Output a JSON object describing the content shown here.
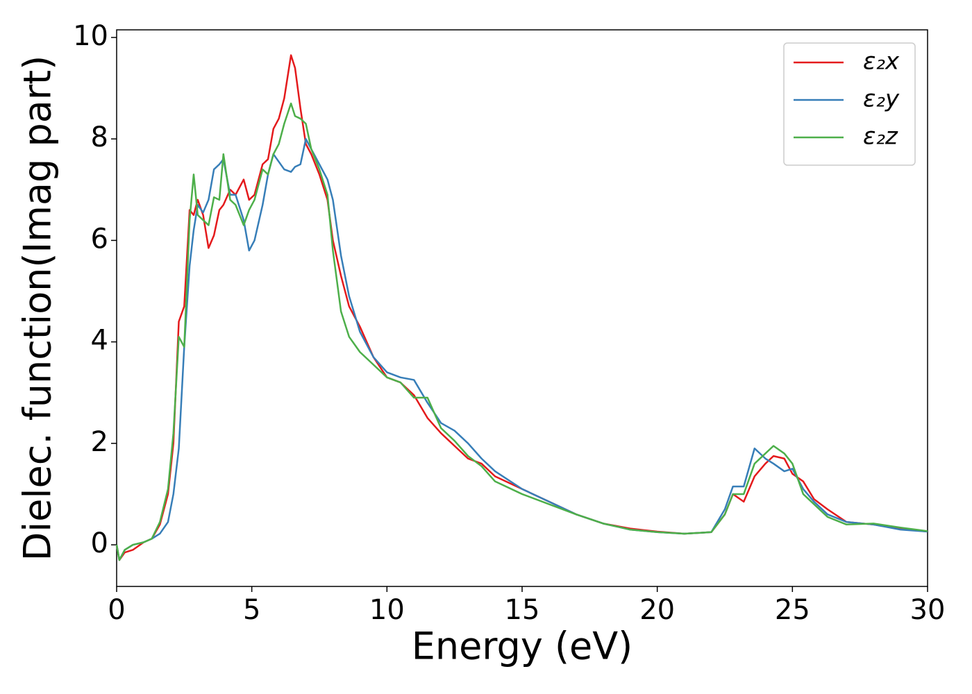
{
  "chart_data": {
    "type": "line",
    "xlabel": "Energy (eV)",
    "ylabel": "Dielec. function(Imag part)",
    "x": [
      0,
      0.1,
      0.3,
      0.6,
      1,
      1.3,
      1.6,
      1.9,
      2.1,
      2.3,
      2.5,
      2.7,
      2.85,
      3.0,
      3.2,
      3.4,
      3.6,
      3.8,
      3.95,
      4.2,
      4.4,
      4.7,
      4.9,
      5.1,
      5.4,
      5.6,
      5.8,
      6.0,
      6.2,
      6.45,
      6.6,
      6.8,
      7.0,
      7.2,
      7.5,
      7.8,
      8.0,
      8.3,
      8.6,
      9.0,
      9.5,
      10,
      10.5,
      11,
      11.5,
      12,
      12.5,
      13,
      13.5,
      14,
      15,
      16,
      17,
      18,
      19,
      20,
      21,
      22,
      22.5,
      22.8,
      23.2,
      23.6,
      24,
      24.3,
      24.7,
      25,
      25.4,
      25.8,
      26.3,
      27,
      28,
      29,
      30
    ],
    "series": [
      {
        "name": "ε₂x",
        "color": "#e41a1c",
        "values": [
          0,
          -0.3,
          -0.15,
          -0.1,
          0.05,
          0.12,
          0.4,
          1.0,
          2.0,
          4.4,
          4.7,
          6.6,
          6.5,
          6.8,
          6.5,
          5.85,
          6.1,
          6.6,
          6.7,
          7.0,
          6.9,
          7.2,
          6.8,
          6.9,
          7.5,
          7.6,
          8.2,
          8.4,
          8.8,
          9.65,
          9.4,
          8.6,
          7.9,
          7.7,
          7.3,
          6.8,
          6.0,
          5.3,
          4.7,
          4.3,
          3.7,
          3.3,
          3.2,
          2.95,
          2.5,
          2.2,
          1.95,
          1.7,
          1.6,
          1.35,
          1.1,
          0.85,
          0.6,
          0.42,
          0.32,
          0.26,
          0.22,
          0.25,
          0.6,
          1.0,
          0.85,
          1.35,
          1.6,
          1.75,
          1.7,
          1.4,
          1.25,
          0.9,
          0.7,
          0.45,
          0.4,
          0.32,
          0.26
        ]
      },
      {
        "name": "ε₂y",
        "color": "#377eb8",
        "values": [
          0,
          -0.3,
          -0.1,
          0,
          0.05,
          0.12,
          0.22,
          0.45,
          1.0,
          1.9,
          3.9,
          5.5,
          6.2,
          6.7,
          6.55,
          6.8,
          7.4,
          7.5,
          7.6,
          6.9,
          6.9,
          6.4,
          5.8,
          6.0,
          6.7,
          7.3,
          7.7,
          7.55,
          7.4,
          7.35,
          7.45,
          7.5,
          8.0,
          7.8,
          7.5,
          7.2,
          6.8,
          5.7,
          4.9,
          4.2,
          3.7,
          3.4,
          3.3,
          3.25,
          2.8,
          2.4,
          2.25,
          2.0,
          1.7,
          1.45,
          1.1,
          0.85,
          0.6,
          0.42,
          0.3,
          0.25,
          0.22,
          0.25,
          0.7,
          1.15,
          1.15,
          1.9,
          1.7,
          1.6,
          1.45,
          1.5,
          1.1,
          0.85,
          0.6,
          0.45,
          0.4,
          0.3,
          0.26
        ]
      },
      {
        "name": "ε₂z",
        "color": "#4daf4a",
        "values": [
          0,
          -0.3,
          -0.1,
          0,
          0.05,
          0.12,
          0.45,
          1.1,
          2.2,
          4.1,
          3.9,
          6.4,
          7.3,
          6.5,
          6.4,
          6.3,
          6.85,
          6.8,
          7.7,
          6.8,
          6.7,
          6.3,
          6.6,
          6.8,
          7.4,
          7.3,
          7.7,
          7.9,
          8.3,
          8.7,
          8.45,
          8.4,
          8.3,
          7.8,
          7.4,
          6.9,
          5.8,
          4.6,
          4.1,
          3.8,
          3.55,
          3.3,
          3.2,
          2.9,
          2.9,
          2.3,
          2.05,
          1.75,
          1.55,
          1.25,
          1.0,
          0.8,
          0.6,
          0.42,
          0.3,
          0.25,
          0.22,
          0.25,
          0.6,
          1.0,
          1.0,
          1.6,
          1.8,
          1.95,
          1.8,
          1.6,
          1.0,
          0.8,
          0.55,
          0.4,
          0.42,
          0.34,
          0.27
        ]
      }
    ],
    "xlim": [
      0,
      30
    ],
    "ylim": [
      -0.82,
      10.15
    ],
    "xticks": [
      0,
      5,
      10,
      15,
      20,
      25,
      30
    ],
    "yticks": [
      0,
      2,
      4,
      6,
      8,
      10
    ],
    "legend": "upper right"
  }
}
